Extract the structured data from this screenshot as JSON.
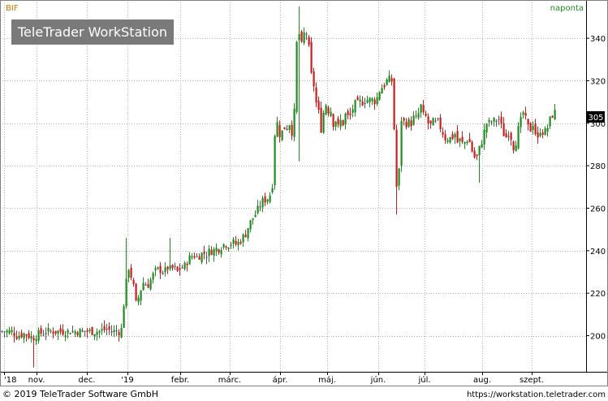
{
  "header": {
    "symbol": "BIF",
    "interval": "naponta",
    "watermark": "TeleTrader WorkStation",
    "last_price": "305"
  },
  "footer": {
    "copyright": "© 2019 TeleTrader Software GmbH",
    "url": "https://workstation.teletrader.com"
  },
  "colors": {
    "up": "#1e8c1e",
    "down": "#c81e1e",
    "flat": "#555555",
    "grid": "#b4b4b4",
    "symbol_text": "#c87800",
    "interval_text": "#1e8c1e",
    "watermark_bg": "#7a7a7a"
  },
  "chart_data": {
    "type": "candlestick",
    "grid": true,
    "y_axis_side": "right",
    "ylim": [
      183,
      358
    ],
    "yticks": [
      200,
      220,
      240,
      260,
      280,
      300,
      320,
      340
    ],
    "xtick_labels": [
      "'18",
      "nov.",
      "dec.",
      "'19",
      "febr.",
      "márc.",
      "ápr.",
      "máj.",
      "jún.",
      "júl.",
      "aug.",
      "szept."
    ],
    "last_value": 305,
    "path_points": [
      [
        0,
        202
      ],
      [
        14,
        202
      ],
      [
        20,
        200
      ],
      [
        30,
        201
      ],
      [
        40,
        199
      ],
      [
        48,
        201
      ],
      [
        60,
        202
      ],
      [
        75,
        202
      ],
      [
        88,
        202
      ],
      [
        100,
        202
      ],
      [
        112,
        202
      ],
      [
        120,
        202
      ],
      [
        130,
        203
      ],
      [
        140,
        202
      ],
      [
        146,
        202
      ],
      [
        148,
        201
      ],
      [
        150,
        205
      ],
      [
        152,
        215
      ],
      [
        155,
        225
      ],
      [
        158,
        232
      ],
      [
        161,
        228
      ],
      [
        164,
        223
      ],
      [
        167,
        215
      ],
      [
        170,
        218
      ],
      [
        173,
        222
      ],
      [
        176,
        225
      ],
      [
        179,
        224
      ],
      [
        182,
        224
      ],
      [
        186,
        227
      ],
      [
        190,
        230
      ],
      [
        194,
        231
      ],
      [
        198,
        231
      ],
      [
        202,
        230
      ],
      [
        206,
        232
      ],
      [
        210,
        231
      ],
      [
        214,
        232
      ],
      [
        218,
        230
      ],
      [
        222,
        232
      ],
      [
        226,
        232
      ],
      [
        230,
        235
      ],
      [
        234,
        237
      ],
      [
        238,
        238
      ],
      [
        242,
        237
      ],
      [
        246,
        238
      ],
      [
        250,
        239
      ],
      [
        254,
        238
      ],
      [
        258,
        240
      ],
      [
        262,
        240
      ],
      [
        266,
        241
      ],
      [
        270,
        241
      ],
      [
        274,
        243
      ],
      [
        278,
        243
      ],
      [
        282,
        243
      ],
      [
        286,
        244
      ],
      [
        290,
        243
      ],
      [
        294,
        244
      ],
      [
        298,
        246
      ],
      [
        302,
        248
      ],
      [
        306,
        252
      ],
      [
        310,
        255
      ],
      [
        314,
        257
      ],
      [
        318,
        260
      ],
      [
        322,
        263
      ],
      [
        326,
        264
      ],
      [
        330,
        265
      ],
      [
        334,
        268
      ],
      [
        336,
        275
      ],
      [
        338,
        295
      ],
      [
        341,
        300
      ],
      [
        344,
        295
      ],
      [
        347,
        296
      ],
      [
        350,
        298
      ],
      [
        353,
        298
      ],
      [
        356,
        300
      ],
      [
        359,
        296
      ],
      [
        362,
        305
      ],
      [
        364,
        330
      ],
      [
        366,
        345
      ],
      [
        368,
        342
      ],
      [
        370,
        335
      ],
      [
        372,
        338
      ],
      [
        374,
        342
      ],
      [
        376,
        345
      ],
      [
        378,
        340
      ],
      [
        380,
        335
      ],
      [
        382,
        325
      ],
      [
        384,
        320
      ],
      [
        386,
        318
      ],
      [
        388,
        312
      ],
      [
        390,
        307
      ],
      [
        392,
        305
      ],
      [
        394,
        300
      ],
      [
        396,
        295
      ],
      [
        398,
        305
      ],
      [
        400,
        310
      ],
      [
        402,
        308
      ],
      [
        404,
        306
      ],
      [
        406,
        310
      ],
      [
        408,
        302
      ],
      [
        410,
        300
      ],
      [
        412,
        303
      ],
      [
        414,
        300
      ],
      [
        416,
        298
      ],
      [
        418,
        302
      ],
      [
        420,
        300
      ],
      [
        422,
        300
      ],
      [
        424,
        303
      ],
      [
        426,
        305
      ],
      [
        428,
        303
      ],
      [
        430,
        302
      ],
      [
        432,
        305
      ],
      [
        434,
        307
      ],
      [
        436,
        308
      ],
      [
        438,
        310
      ],
      [
        440,
        309
      ],
      [
        442,
        309
      ],
      [
        444,
        311
      ],
      [
        446,
        310
      ],
      [
        448,
        311
      ],
      [
        450,
        311
      ],
      [
        452,
        311
      ],
      [
        454,
        311
      ],
      [
        456,
        311
      ],
      [
        458,
        311
      ],
      [
        460,
        310
      ],
      [
        462,
        311
      ],
      [
        464,
        312
      ],
      [
        466,
        315
      ],
      [
        468,
        316
      ],
      [
        470,
        317
      ],
      [
        472,
        318
      ],
      [
        474,
        318
      ],
      [
        476,
        320
      ],
      [
        478,
        321
      ],
      [
        480,
        320
      ],
      [
        482,
        320
      ],
      [
        484,
        305
      ],
      [
        486,
        290
      ],
      [
        488,
        270
      ],
      [
        490,
        265
      ],
      [
        492,
        290
      ],
      [
        494,
        302
      ],
      [
        496,
        303
      ],
      [
        498,
        298
      ],
      [
        500,
        300
      ],
      [
        502,
        300
      ],
      [
        504,
        301
      ],
      [
        506,
        300
      ],
      [
        508,
        302
      ],
      [
        510,
        303
      ],
      [
        512,
        302
      ],
      [
        514,
        303
      ],
      [
        516,
        306
      ],
      [
        518,
        308
      ],
      [
        520,
        305
      ],
      [
        522,
        302
      ],
      [
        524,
        303
      ],
      [
        526,
        300
      ],
      [
        528,
        300
      ],
      [
        530,
        299
      ],
      [
        532,
        300
      ],
      [
        534,
        301
      ],
      [
        536,
        300
      ],
      [
        538,
        301
      ],
      [
        540,
        300
      ],
      [
        542,
        298
      ],
      [
        544,
        297
      ],
      [
        546,
        294
      ],
      [
        548,
        293
      ],
      [
        550,
        294
      ],
      [
        552,
        292
      ],
      [
        554,
        293
      ],
      [
        556,
        294
      ],
      [
        558,
        293
      ],
      [
        560,
        295
      ],
      [
        562,
        292
      ],
      [
        564,
        290
      ],
      [
        566,
        292
      ],
      [
        568,
        291
      ],
      [
        570,
        290
      ],
      [
        572,
        291
      ],
      [
        574,
        292
      ],
      [
        576,
        293
      ],
      [
        578,
        291
      ],
      [
        580,
        288
      ],
      [
        582,
        286
      ],
      [
        584,
        284
      ],
      [
        586,
        283
      ],
      [
        588,
        285
      ],
      [
        590,
        288
      ],
      [
        592,
        290
      ],
      [
        594,
        293
      ],
      [
        596,
        296
      ],
      [
        598,
        299
      ],
      [
        600,
        301
      ],
      [
        602,
        300
      ],
      [
        604,
        301
      ],
      [
        606,
        300
      ],
      [
        608,
        301
      ],
      [
        610,
        302
      ],
      [
        612,
        301
      ],
      [
        614,
        302
      ],
      [
        616,
        300
      ],
      [
        618,
        297
      ],
      [
        620,
        295
      ],
      [
        622,
        293
      ],
      [
        624,
        294
      ],
      [
        626,
        296
      ],
      [
        628,
        295
      ],
      [
        630,
        292
      ],
      [
        632,
        289
      ],
      [
        634,
        290
      ],
      [
        636,
        293
      ],
      [
        638,
        297
      ],
      [
        640,
        300
      ],
      [
        642,
        302
      ],
      [
        644,
        305
      ],
      [
        646,
        303
      ],
      [
        648,
        300
      ],
      [
        650,
        298
      ],
      [
        652,
        296
      ],
      [
        654,
        298
      ],
      [
        656,
        300
      ],
      [
        658,
        297
      ],
      [
        660,
        294
      ],
      [
        662,
        292
      ],
      [
        664,
        296
      ],
      [
        666,
        298
      ],
      [
        668,
        296
      ],
      [
        670,
        297
      ],
      [
        672,
        295
      ],
      [
        674,
        298
      ],
      [
        676,
        300
      ],
      [
        678,
        303
      ],
      [
        680,
        304
      ],
      [
        682,
        305
      ],
      [
        684,
        305
      ]
    ]
  }
}
